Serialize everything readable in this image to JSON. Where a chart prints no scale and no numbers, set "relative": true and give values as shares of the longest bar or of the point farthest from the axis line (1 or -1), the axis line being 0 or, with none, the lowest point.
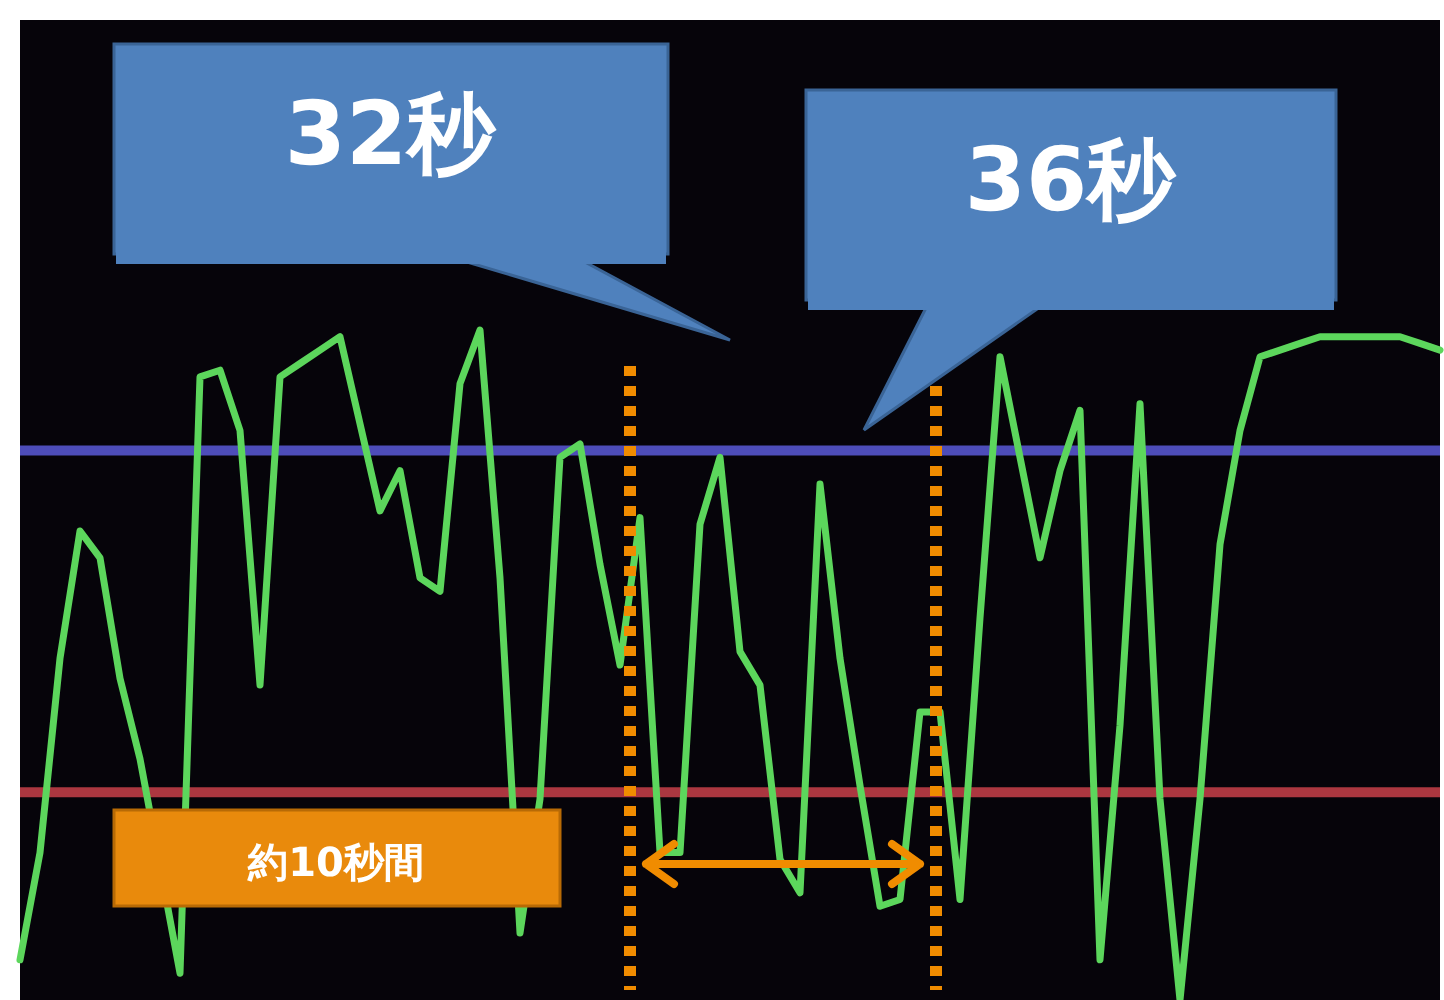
{
  "chart_data": {
    "type": "line",
    "relative": true,
    "categories": [
      null,
      null,
      null,
      null,
      null,
      null,
      null,
      null,
      null,
      null,
      null,
      null,
      null,
      null,
      null,
      null,
      null,
      null,
      null,
      null,
      null,
      null,
      null,
      null,
      null,
      null,
      null,
      null,
      null,
      null,
      null,
      null,
      null,
      null,
      null,
      null,
      null,
      null,
      null,
      null,
      null,
      null,
      null,
      null,
      null,
      null,
      null,
      null,
      null,
      null,
      null,
      null,
      null,
      null,
      null,
      null,
      null,
      null,
      null,
      null,
      null,
      null,
      null,
      null,
      null,
      null,
      null,
      null,
      null,
      null,
      null,
      null
    ],
    "series": [
      {
        "color": "#5cd65c",
        "values": [
          0.06,
          0.22,
          0.51,
          0.7,
          0.66,
          0.48,
          0.36,
          null,
          0.04,
          0.93,
          0.94,
          0.85,
          0.47,
          0.93,
          0.95,
          0.97,
          0.99,
          0.86,
          0.73,
          0.79,
          0.63,
          0.61,
          0.92,
          1.0,
          0.63,
          0.1,
          0.3,
          0.81,
          0.83,
          0.65,
          0.5,
          0.72,
          0.22,
          0.22,
          0.71,
          0.81,
          0.52,
          0.47,
          0.21,
          0.16,
          0.77,
          0.51,
          0.32,
          0.14,
          0.15,
          0.43,
          0.43,
          0.15,
          0.57,
          0.96,
          0.81,
          0.66,
          0.79,
          0.88,
          0.06,
          0.41,
          0.89,
          0.3,
          0.0,
          0.3,
          0.68,
          0.85,
          0.96,
          0.97,
          0.98,
          0.99,
          0.99,
          0.99,
          0.99,
          0.99,
          0.98,
          0.97
        ]
      }
    ],
    "ref_lines": [
      {
        "axis": "y",
        "value": 0.82,
        "color": "#5a5ad8",
        "line_style": "solid"
      },
      {
        "axis": "y",
        "value": 0.31,
        "color": "#c8404a",
        "line_style": "solid"
      }
    ],
    "annotations": [
      "32秒",
      "36秒",
      "約10秒間"
    ]
  }
}
